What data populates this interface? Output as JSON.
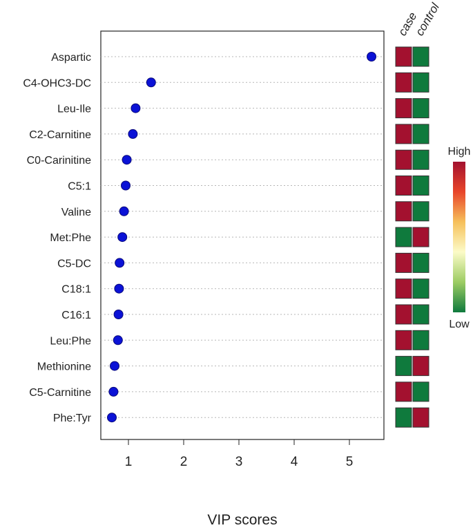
{
  "chart_data": {
    "type": "scatter",
    "title": "",
    "xlabel": "VIP scores",
    "ylabel": "",
    "xlim": [
      0.55,
      5.55
    ],
    "xticks": [
      1,
      2,
      3,
      4,
      5
    ],
    "grid": "horizontal dotted per feature",
    "features": [
      "Aspartic",
      "C4-OHC3-DC",
      "Leu-Ile",
      "C2-Carnitine",
      "C0-Carinitine",
      "C5:1",
      "Valine",
      "Met:Phe",
      "C5-DC",
      "C18:1",
      "C16:1",
      "Leu:Phe",
      "Methionine",
      "C5-Carnitine",
      "Phe:Tyr"
    ],
    "values": [
      5.4,
      1.41,
      1.13,
      1.08,
      0.97,
      0.95,
      0.92,
      0.89,
      0.84,
      0.83,
      0.82,
      0.81,
      0.75,
      0.73,
      0.7
    ],
    "point_color": "#0b12d6",
    "heatmap": {
      "columns": [
        "case",
        "control"
      ],
      "levels": [
        [
          "high",
          "low"
        ],
        [
          "high",
          "low"
        ],
        [
          "high",
          "low"
        ],
        [
          "high",
          "low"
        ],
        [
          "high",
          "low"
        ],
        [
          "high",
          "low"
        ],
        [
          "high",
          "low"
        ],
        [
          "low",
          "high"
        ],
        [
          "high",
          "low"
        ],
        [
          "high",
          "low"
        ],
        [
          "high",
          "low"
        ],
        [
          "high",
          "low"
        ],
        [
          "low",
          "high"
        ],
        [
          "high",
          "low"
        ],
        [
          "low",
          "high"
        ]
      ],
      "colors": {
        "high": "#a3112f",
        "low": "#0f7a3d"
      }
    },
    "legend": {
      "high_label": "High",
      "low_label": "Low",
      "gradient": [
        "#a3112f",
        "#e8452a",
        "#f6c05b",
        "#fcfbc8",
        "#9ccc63",
        "#0f7a3d"
      ],
      "placement": "right"
    }
  }
}
